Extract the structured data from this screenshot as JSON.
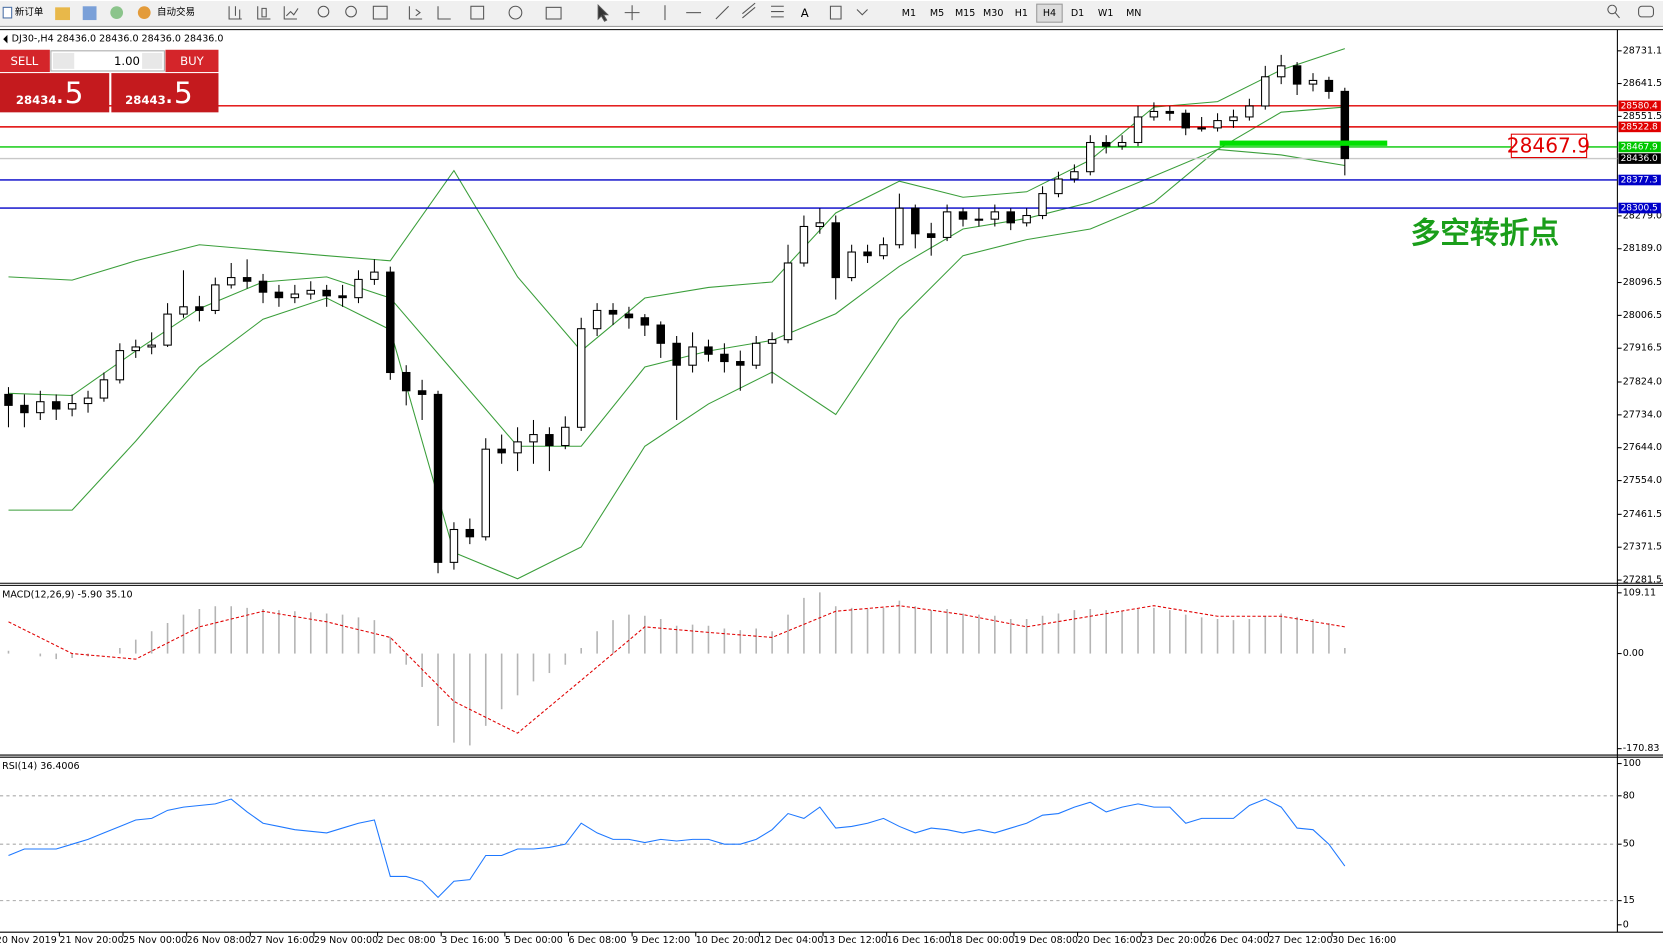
{
  "toolbar": {
    "new_order": "新订单",
    "auto_trading": "自动交易",
    "timeframes": [
      "M1",
      "M5",
      "M15",
      "M30",
      "H1",
      "H4",
      "D1",
      "W1",
      "MN"
    ],
    "active": "H4"
  },
  "trade_panel": {
    "sell": "SELL",
    "buy": "BUY",
    "lots": "1.00",
    "bid_main": "28434",
    "bid_frac": ".5",
    "ask_main": "28443",
    "ask_frac": ".5"
  },
  "chart_data": [
    {
      "type": "candlestick",
      "title": "DJ30-,H4 28436.0 28436.0 28436.0 28436.0",
      "categories": [
        "20 Nov 2019",
        null,
        null,
        null,
        "21 Nov 20:00",
        null,
        null,
        null,
        "25 Nov 00:00",
        null,
        null,
        null,
        "26 Nov 08:00",
        null,
        null,
        null,
        "27 Nov 16:00",
        null,
        null,
        null,
        "29 Nov 00:00",
        null,
        null,
        null,
        "2 Dec 08:00",
        null,
        null,
        null,
        "3 Dec 16:00",
        null,
        null,
        null,
        "5 Dec 00:00",
        null,
        null,
        null,
        "6 Dec 08:00",
        null,
        null,
        null,
        "9 Dec 12:00",
        null,
        null,
        null,
        "10 Dec 20:00",
        null,
        null,
        null,
        "12 Dec 04:00",
        null,
        null,
        null,
        "13 Dec 12:00",
        null,
        null,
        null,
        "16 Dec 16:00",
        null,
        null,
        null,
        "18 Dec 00:00",
        null,
        null,
        null,
        "19 Dec 08:00",
        null,
        null,
        null,
        "20 Dec 16:00",
        null,
        null,
        null,
        "23 Dec 20:00",
        null,
        null,
        null,
        "26 Dec 04:00",
        null,
        null,
        null,
        "27 Dec 12:00",
        null,
        null,
        null,
        "30 Dec 16:00"
      ],
      "candles": [
        [
          27790,
          27810,
          27700,
          27760
        ],
        [
          27760,
          27790,
          27700,
          27740
        ],
        [
          27740,
          27800,
          27720,
          27770
        ],
        [
          27770,
          27790,
          27720,
          27750
        ],
        [
          27750,
          27790,
          27730,
          27765
        ],
        [
          27765,
          27800,
          27740,
          27780
        ],
        [
          27780,
          27850,
          27770,
          27830
        ],
        [
          27830,
          27930,
          27820,
          27910
        ],
        [
          27910,
          27940,
          27890,
          27920
        ],
        [
          27920,
          27960,
          27900,
          27925
        ],
        [
          27925,
          28040,
          27920,
          28010
        ],
        [
          28010,
          28130,
          28000,
          28030
        ],
        [
          28030,
          28060,
          27990,
          28020
        ],
        [
          28020,
          28110,
          28010,
          28090
        ],
        [
          28090,
          28150,
          28080,
          28110
        ],
        [
          28110,
          28160,
          28080,
          28100
        ],
        [
          28100,
          28120,
          28040,
          28070
        ],
        [
          28070,
          28090,
          28030,
          28055
        ],
        [
          28055,
          28090,
          28040,
          28065
        ],
        [
          28065,
          28100,
          28050,
          28075
        ],
        [
          28075,
          28090,
          28030,
          28060
        ],
        [
          28060,
          28090,
          28030,
          28055
        ],
        [
          28055,
          28130,
          28040,
          28105
        ],
        [
          28105,
          28160,
          28090,
          28125
        ],
        [
          28125,
          28140,
          27830,
          27850
        ],
        [
          27850,
          27870,
          27760,
          27800
        ],
        [
          27800,
          27830,
          27720,
          27790
        ],
        [
          27790,
          27800,
          27300,
          27330
        ],
        [
          27330,
          27440,
          27310,
          27420
        ],
        [
          27420,
          27450,
          27380,
          27400
        ],
        [
          27400,
          27670,
          27390,
          27640
        ],
        [
          27640,
          27680,
          27600,
          27630
        ],
        [
          27630,
          27700,
          27580,
          27660
        ],
        [
          27660,
          27720,
          27600,
          27680
        ],
        [
          27680,
          27700,
          27580,
          27650
        ],
        [
          27650,
          27730,
          27640,
          27700
        ],
        [
          27700,
          28000,
          27690,
          27970
        ],
        [
          27970,
          28040,
          27950,
          28020
        ],
        [
          28020,
          28040,
          27980,
          28010
        ],
        [
          28010,
          28030,
          27970,
          28000
        ],
        [
          28000,
          28010,
          27950,
          27980
        ],
        [
          27980,
          27990,
          27890,
          27930
        ],
        [
          27930,
          27950,
          27720,
          27870
        ],
        [
          27870,
          27960,
          27850,
          27920
        ],
        [
          27920,
          27940,
          27880,
          27900
        ],
        [
          27900,
          27930,
          27850,
          27880
        ],
        [
          27880,
          27910,
          27800,
          27870
        ],
        [
          27870,
          27950,
          27860,
          27930
        ],
        [
          27930,
          27960,
          27820,
          27940
        ],
        [
          27940,
          28200,
          27930,
          28150
        ],
        [
          28150,
          28280,
          28140,
          28250
        ],
        [
          28250,
          28300,
          28230,
          28260
        ],
        [
          28260,
          28280,
          28050,
          28110
        ],
        [
          28110,
          28200,
          28100,
          28180
        ],
        [
          28180,
          28200,
          28150,
          28170
        ],
        [
          28170,
          28220,
          28160,
          28200
        ],
        [
          28200,
          28340,
          28190,
          28300
        ],
        [
          28300,
          28310,
          28190,
          28230
        ],
        [
          28230,
          28260,
          28170,
          28220
        ],
        [
          28220,
          28310,
          28210,
          28290
        ],
        [
          28290,
          28300,
          28250,
          28270
        ],
        [
          28270,
          28300,
          28250,
          28270
        ],
        [
          28270,
          28310,
          28250,
          28290
        ],
        [
          28290,
          28300,
          28240,
          28260
        ],
        [
          28260,
          28300,
          28250,
          28280
        ],
        [
          28280,
          28360,
          28270,
          28340
        ],
        [
          28340,
          28400,
          28330,
          28380
        ],
        [
          28380,
          28420,
          28370,
          28400
        ],
        [
          28400,
          28500,
          28390,
          28480
        ],
        [
          28480,
          28500,
          28450,
          28470
        ],
        [
          28470,
          28500,
          28460,
          28480
        ],
        [
          28480,
          28580,
          28470,
          28550
        ],
        [
          28550,
          28590,
          28540,
          28565
        ],
        [
          28565,
          28580,
          28540,
          28560
        ],
        [
          28560,
          28570,
          28500,
          28520
        ],
        [
          28520,
          28550,
          28510,
          28520
        ],
        [
          28520,
          28560,
          28510,
          28540
        ],
        [
          28540,
          28570,
          28520,
          28550
        ],
        [
          28550,
          28600,
          28540,
          28580
        ],
        [
          28580,
          28690,
          28570,
          28660
        ],
        [
          28660,
          28720,
          28640,
          28690
        ],
        [
          28690,
          28700,
          28610,
          28640
        ],
        [
          28640,
          28670,
          28620,
          28650
        ],
        [
          28650,
          28660,
          28600,
          28620
        ],
        [
          28620,
          28630,
          28390,
          28436
        ]
      ],
      "up_color": "#ffffff",
      "down_color": "#000000",
      "bands": {
        "color": "#3a9e3a",
        "upper": [
          28112,
          28103,
          28156,
          28200,
          28185,
          28170,
          28156,
          28403,
          28112,
          27909,
          28054,
          28083,
          28098,
          28287,
          28374,
          28330,
          28345,
          28432,
          28577,
          28592,
          28679,
          28737
        ],
        "middle": [
          27793,
          27787,
          27909,
          28025,
          28098,
          28112,
          28054,
          27851,
          27648,
          27648,
          27865,
          27909,
          27938,
          28011,
          28141,
          28243,
          28272,
          28316,
          28388,
          28461,
          28563,
          28577
        ],
        "lower": [
          27473,
          27473,
          27662,
          27865,
          27996,
          28054,
          27967,
          27357,
          27285,
          27372,
          27648,
          27764,
          27851,
          27735,
          27996,
          28170,
          28214,
          28243,
          28316,
          28461,
          28446,
          28417
        ]
      },
      "ylim": [
        27275.7,
        28786.3
      ],
      "yticks": [
        28731.1,
        28641.5,
        28551.5,
        {
          "value": 28279.0,
          "label": "28279.0"
        },
        {
          "value": 28189.0,
          "label": "28189.0"
        },
        28096.5,
        28006.5,
        27916.5,
        {
          "value": 27824.0,
          "label": "27824.0"
        },
        {
          "value": 27734.0,
          "label": "27734.0"
        },
        {
          "value": 27644.0,
          "label": "27644.0"
        },
        {
          "value": 27554.0,
          "label": "27554.0"
        },
        27461.5,
        27371.5,
        27281.5
      ],
      "levels": [
        {
          "value": 28580.4,
          "color": "#e00000"
        },
        {
          "value": 28522.8,
          "color": "#e00000"
        },
        {
          "value": 28467.9,
          "color": "#00c800"
        },
        {
          "value": 28436.0,
          "label": "28436.0",
          "color": "#000000",
          "line_color": "#c8c8c8"
        },
        {
          "value": 28377.3,
          "color": "#0000c8"
        },
        {
          "value": 28300.5,
          "color": "#0000c8"
        }
      ],
      "price_label": 28467.9,
      "price_label_color": "#e00000",
      "segment_color": "#00e000",
      "annotation": "多空转折点",
      "annotation_color": "#1a9e1a"
    },
    {
      "type": "macd",
      "title": "MACD(12,26,9) -5.90 35.10",
      "values": [
        5,
        0,
        -5,
        -10,
        -8,
        -5,
        0,
        10,
        25,
        40,
        55,
        70,
        80,
        85,
        85,
        82,
        80,
        78,
        76,
        74,
        72,
        70,
        65,
        60,
        30,
        -20,
        -60,
        -130,
        -160,
        -165,
        -130,
        -100,
        -75,
        -50,
        -35,
        -20,
        10,
        40,
        60,
        70,
        68,
        62,
        50,
        52,
        50,
        45,
        42,
        45,
        40,
        70,
        100,
        110,
        85,
        82,
        80,
        82,
        95,
        85,
        78,
        80,
        72,
        70,
        68,
        62,
        62,
        68,
        72,
        78,
        80,
        78,
        76,
        80,
        82,
        78,
        70,
        65,
        62,
        60,
        62,
        68,
        72,
        66,
        62,
        55,
        10
      ],
      "color": "#b4b4b4",
      "signal": [
        57,
        0,
        -10,
        48,
        76,
        57,
        29,
        -86,
        -143,
        -48,
        48,
        38,
        29,
        76,
        86,
        70,
        48,
        67,
        86,
        67,
        67,
        48
      ],
      "signal_color": "#e00000",
      "ylim": [
        -180.4,
        120.6
      ],
      "yticks": [
        109.11,
        {
          "value": 0,
          "label": "0.00"
        },
        -170.83
      ]
    },
    {
      "type": "rsi",
      "title": "RSI(14) 36.4006",
      "values": [
        43,
        47,
        47,
        47,
        50,
        53,
        57,
        61,
        65,
        66,
        71,
        73,
        74,
        75,
        78,
        70,
        63,
        61,
        59,
        58,
        57,
        60,
        63,
        65,
        30,
        30,
        27,
        17,
        27,
        28,
        43,
        43,
        47,
        47,
        48,
        50,
        63,
        57,
        53,
        53,
        51,
        53,
        52,
        53,
        53,
        50,
        50,
        53,
        59,
        69,
        66,
        73,
        60,
        61,
        63,
        66,
        61,
        57,
        60,
        59,
        57,
        59,
        57,
        60,
        63,
        68,
        69,
        73,
        76,
        70,
        73,
        75,
        73,
        73,
        63,
        66,
        66,
        66,
        74,
        78,
        73,
        60,
        59,
        50,
        36.4006
      ],
      "color": "#1e78ff",
      "levels": [
        80,
        50,
        15
      ],
      "ylim": [
        -3.9,
        103.3
      ],
      "yticks": [
        100,
        80,
        50,
        15,
        0
      ]
    }
  ]
}
